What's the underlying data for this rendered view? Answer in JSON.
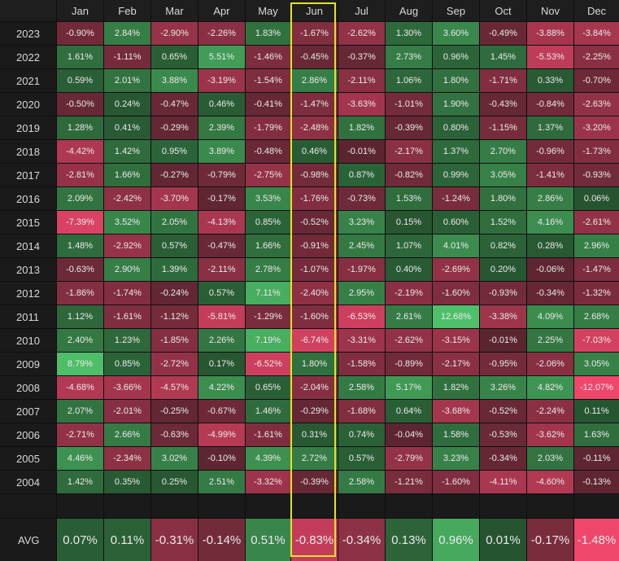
{
  "months": [
    "Jan",
    "Feb",
    "Mar",
    "Apr",
    "May",
    "Jun",
    "Jul",
    "Aug",
    "Sep",
    "Oct",
    "Nov",
    "Dec"
  ],
  "highlighted_month": "Jun",
  "rows": [
    {
      "year": "2023",
      "values": [
        "-0.90%",
        "2.84%",
        "-2.90%",
        "-2.26%",
        "1.83%",
        "-1.67%",
        "-2.62%",
        "1.30%",
        "3.60%",
        "-0.49%",
        "-3.88%",
        "-3.84%"
      ]
    },
    {
      "year": "2022",
      "values": [
        "1.61%",
        "-1.11%",
        "0.65%",
        "5.51%",
        "-1.46%",
        "-0.45%",
        "-0.37%",
        "2.73%",
        "0.96%",
        "1.45%",
        "-5.53%",
        "-2.25%"
      ]
    },
    {
      "year": "2021",
      "values": [
        "0.59%",
        "2.01%",
        "3.88%",
        "-3.19%",
        "-1.54%",
        "2.86%",
        "-2.11%",
        "1.06%",
        "1.80%",
        "-1.71%",
        "0.33%",
        "-0.70%"
      ]
    },
    {
      "year": "2020",
      "values": [
        "-0.50%",
        "0.24%",
        "-0.47%",
        "0.46%",
        "-0.41%",
        "-1.47%",
        "-3.63%",
        "-1.01%",
        "1.90%",
        "-0.43%",
        "-0.84%",
        "-2.63%"
      ]
    },
    {
      "year": "2019",
      "values": [
        "1.28%",
        "0.41%",
        "-0.29%",
        "2.39%",
        "-1.79%",
        "-2.48%",
        "1.82%",
        "-0.39%",
        "0.80%",
        "-1.15%",
        "1.37%",
        "-3.20%"
      ]
    },
    {
      "year": "2018",
      "values": [
        "-4.42%",
        "1.42%",
        "0.95%",
        "3.89%",
        "-0.48%",
        "0.46%",
        "-0.01%",
        "-2.17%",
        "1.37%",
        "2.70%",
        "-0.96%",
        "-1.73%"
      ]
    },
    {
      "year": "2017",
      "values": [
        "-2.81%",
        "1.66%",
        "-0.27%",
        "-0.79%",
        "-2.75%",
        "-0.98%",
        "0.87%",
        "-0.82%",
        "0.99%",
        "3.05%",
        "-1.41%",
        "-0.93%"
      ]
    },
    {
      "year": "2016",
      "values": [
        "2.09%",
        "-2.42%",
        "-3.70%",
        "-0.17%",
        "3.53%",
        "-1.76%",
        "-0.73%",
        "1.53%",
        "-1.24%",
        "1.80%",
        "2.86%",
        "0.06%"
      ]
    },
    {
      "year": "2015",
      "values": [
        "-7.39%",
        "3.52%",
        "2.05%",
        "-4.13%",
        "0.85%",
        "-0.52%",
        "3.23%",
        "0.15%",
        "0.60%",
        "1.52%",
        "4.16%",
        "-2.61%"
      ]
    },
    {
      "year": "2014",
      "values": [
        "1.48%",
        "-2.92%",
        "0.57%",
        "-0.47%",
        "1.66%",
        "-0.91%",
        "2.45%",
        "1.07%",
        "4.01%",
        "0.82%",
        "0.28%",
        "2.96%"
      ]
    },
    {
      "year": "2013",
      "values": [
        "-0.63%",
        "2.90%",
        "1.39%",
        "-2.11%",
        "2.78%",
        "-1.07%",
        "-1.97%",
        "0.40%",
        "-2.69%",
        "0.20%",
        "-0.06%",
        "-1.47%"
      ]
    },
    {
      "year": "2012",
      "values": [
        "-1.86%",
        "-1.74%",
        "-0.24%",
        "0.57%",
        "7.11%",
        "-2.40%",
        "2.95%",
        "-2.19%",
        "-1.60%",
        "-0.93%",
        "-0.34%",
        "-1.32%"
      ]
    },
    {
      "year": "2011",
      "values": [
        "1.12%",
        "-1.61%",
        "-1.12%",
        "-5.81%",
        "-1.29%",
        "-1.60%",
        "-6.53%",
        "2.61%",
        "12.68%",
        "-3.38%",
        "4.09%",
        "2.68%"
      ]
    },
    {
      "year": "2010",
      "values": [
        "2.40%",
        "1.23%",
        "-1.85%",
        "2.26%",
        "7.19%",
        "-6.74%",
        "-3.31%",
        "-2.62%",
        "-3.15%",
        "-0.01%",
        "2.25%",
        "-7.03%"
      ]
    },
    {
      "year": "2009",
      "values": [
        "8.79%",
        "0.85%",
        "-2.72%",
        "0.17%",
        "-6.52%",
        "1.80%",
        "-1.58%",
        "-0.89%",
        "-2.17%",
        "-0.95%",
        "-2.06%",
        "3.05%"
      ]
    },
    {
      "year": "2008",
      "values": [
        "-4.68%",
        "-3.66%",
        "-4.57%",
        "4.22%",
        "0.65%",
        "-2.04%",
        "2.58%",
        "5.17%",
        "1.82%",
        "3.26%",
        "4.82%",
        "-12.07%"
      ]
    },
    {
      "year": "2007",
      "values": [
        "2.07%",
        "-2.01%",
        "-0.25%",
        "-0.67%",
        "1.46%",
        "-0.29%",
        "-1.68%",
        "0.64%",
        "-3.68%",
        "-0.52%",
        "-2.24%",
        "0.11%"
      ]
    },
    {
      "year": "2006",
      "values": [
        "-2.71%",
        "2.66%",
        "-0.63%",
        "-4.99%",
        "-1.61%",
        "0.31%",
        "0.74%",
        "-0.04%",
        "1.58%",
        "-0.53%",
        "-3.62%",
        "1.63%"
      ]
    },
    {
      "year": "2005",
      "values": [
        "4.46%",
        "-2.34%",
        "3.02%",
        "-0.10%",
        "4.39%",
        "2.72%",
        "0.57%",
        "-2.79%",
        "3.23%",
        "-0.34%",
        "2.03%",
        "-0.11%"
      ]
    },
    {
      "year": "2004",
      "values": [
        "1.42%",
        "0.35%",
        "0.25%",
        "2.51%",
        "-3.32%",
        "-0.39%",
        "2.58%",
        "-1.21%",
        "-1.60%",
        "-4.11%",
        "-4.60%",
        "-0.13%"
      ]
    }
  ],
  "avg": {
    "label": "AVG",
    "values": [
      "0.07%",
      "0.11%",
      "-0.31%",
      "-0.14%",
      "0.51%",
      "-0.83%",
      "-0.34%",
      "0.13%",
      "0.96%",
      "0.01%",
      "-0.17%",
      "-1.48%"
    ]
  },
  "colors": {
    "background": "#0f0f0f",
    "header_bg": "#1e1e1e",
    "year_bg": "#1a1a1a",
    "positive_max": "#4fc06a",
    "positive_min": "#25522f",
    "negative_max": "#ef476b",
    "negative_min": "#5a2530",
    "highlight": "#e6e02a"
  }
}
